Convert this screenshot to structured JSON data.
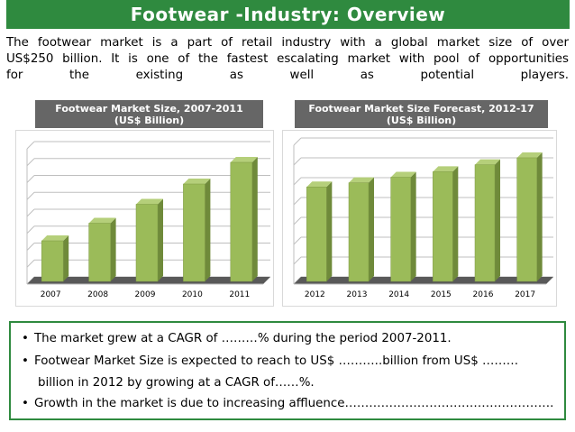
{
  "header": {
    "title": "Footwear -Industry: Overview"
  },
  "intro": {
    "line1": "The footwear market is a part of retail industry with a global market size of over",
    "line2": "US$250 billion. It is one of the fastest escalating market with pool of opportunities",
    "line3_words": [
      "for",
      "the",
      "existing",
      "as",
      "well",
      "as",
      "potential",
      "players."
    ]
  },
  "colors": {
    "title_bg": "#2f8a3f",
    "bar": "#9bbb59",
    "bar_side": "#6f8a3a",
    "bar_top": "#b5cf7a",
    "header_bg": "#666666",
    "box_border": "#2f8a3f"
  },
  "chart_data": [
    {
      "type": "bar",
      "title": "Footwear Market Size, 2007-2011",
      "subtitle": "(US$ Billion)",
      "categories": [
        "2007",
        "2008",
        "2009",
        "2010",
        "2011"
      ],
      "values": [
        30,
        43,
        57,
        72,
        88
      ],
      "ylim": [
        0,
        100
      ],
      "grid": true
    },
    {
      "type": "bar",
      "title": "Footwear Market Size Forecast, 2012-17",
      "subtitle": "(US$ Billion)",
      "categories": [
        "2012",
        "2013",
        "2014",
        "2015",
        "2016",
        "2017"
      ],
      "values": [
        68,
        71,
        75,
        79,
        84,
        89
      ],
      "ylim": [
        0,
        100
      ],
      "grid": true
    }
  ],
  "bullets": {
    "b1": "The market grew at a CAGR of ………% during the period 2007-2011.",
    "b2": "Footwear Market Size is expected to reach to US$  ………..billion from US$ ………",
    "b2_cont": "billion in 2012 by growing at a CAGR of……%.",
    "b3": "Growth in the market is due to increasing affluence…………………………………………….",
    "bullet_char": "•"
  }
}
